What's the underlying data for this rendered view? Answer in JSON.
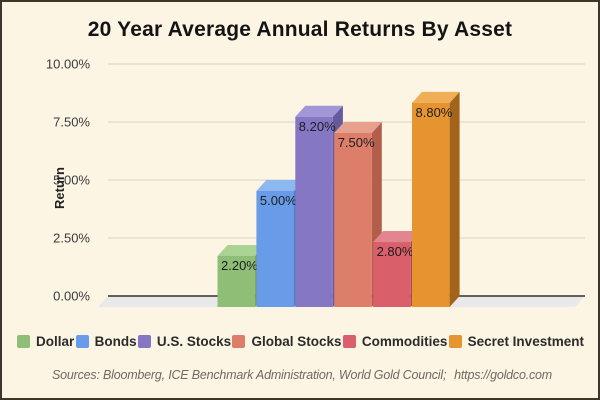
{
  "chart_data": {
    "type": "bar",
    "style": "3d",
    "title": "20 Year Average Annual Returns By Asset",
    "ylabel": "Return",
    "ylim": [
      0,
      10
    ],
    "grid": true,
    "legend_position": "bottom",
    "categories": [
      "Dollar",
      "Bonds",
      "U.S. Stocks",
      "Global Stocks",
      "Commodities",
      "Secret Investment"
    ],
    "values": [
      2.2,
      5.0,
      8.2,
      7.5,
      2.8,
      8.8
    ],
    "value_labels": [
      "2.20%",
      "5.00%",
      "8.20%",
      "7.50%",
      "2.80%",
      "8.80%"
    ],
    "tick_values": [
      0,
      2.5,
      5,
      7.5,
      10
    ],
    "yticks": [
      "0.00%",
      "2.50%",
      "5.00%",
      "7.50%",
      "10.00%"
    ],
    "colors": {
      "front": [
        "#8fbe76",
        "#689ce8",
        "#8677c5",
        "#dc7e69",
        "#d95f6b",
        "#e6942f"
      ],
      "top": [
        "#abd394",
        "#8db7f0",
        "#a295d8",
        "#e7a08e",
        "#e3858f",
        "#f0ae57"
      ],
      "side": [
        "#6e9b57",
        "#4e7fc0",
        "#655a9d",
        "#b25e4b",
        "#b04652",
        "#a2641b"
      ],
      "floor": "#e9e9ec",
      "grid": "#d9d4c6",
      "axis": "#33302a",
      "background": "#fcf5e4",
      "value_label_text": "#1d1d1d",
      "tick_text": "#3b3b3b",
      "title_text": "#141414",
      "legend_text": "#2b2b2b",
      "footer_text": "#70695e"
    }
  },
  "footer": {
    "sources": "Sources: Bloomberg, ICE Benchmark Administration, World Gold Council;",
    "url": "https://goldco.com"
  }
}
